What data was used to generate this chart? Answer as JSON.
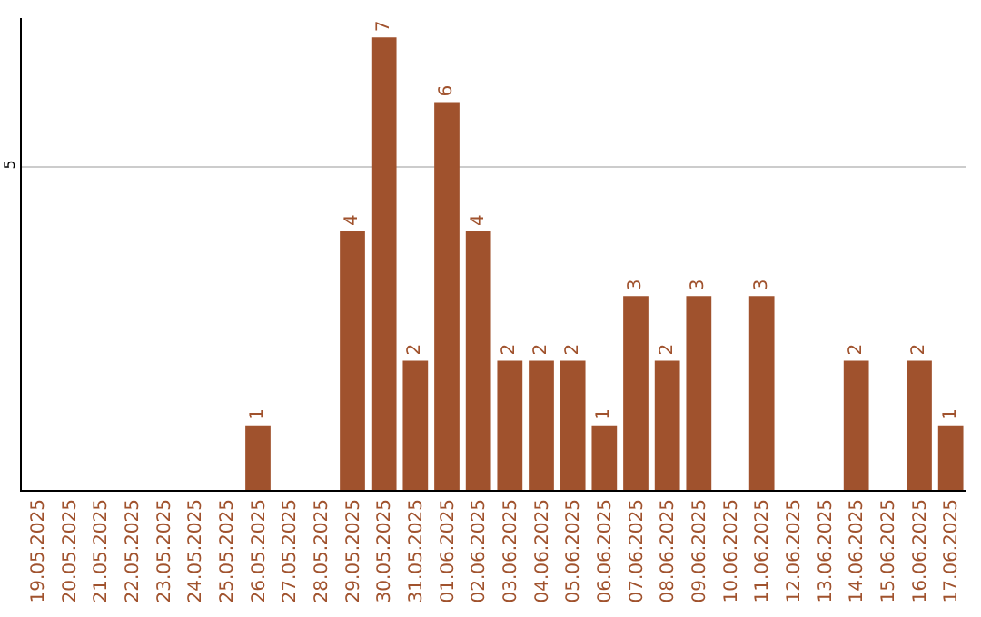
{
  "chart_data": {
    "type": "bar",
    "categories": [
      "19.05.2025",
      "20.05.2025",
      "21.05.2025",
      "22.05.2025",
      "23.05.2025",
      "24.05.2025",
      "25.05.2025",
      "26.05.2025",
      "27.05.2025",
      "28.05.2025",
      "29.05.2025",
      "30.05.2025",
      "31.05.2025",
      "01.06.2025",
      "02.06.2025",
      "03.06.2025",
      "04.06.2025",
      "05.06.2025",
      "06.06.2025",
      "07.06.2025",
      "08.06.2025",
      "09.06.2025",
      "10.06.2025",
      "11.06.2025",
      "12.06.2025",
      "13.06.2025",
      "14.06.2025",
      "15.06.2025",
      "16.06.2025",
      "17.06.2025"
    ],
    "values": [
      0,
      0,
      0,
      0,
      0,
      0,
      0,
      1,
      0,
      0,
      4,
      7,
      2,
      6,
      4,
      2,
      2,
      2,
      1,
      3,
      2,
      3,
      0,
      3,
      0,
      0,
      2,
      0,
      2,
      1
    ],
    "value_labels": [
      null,
      null,
      null,
      null,
      null,
      null,
      null,
      "1",
      null,
      null,
      "4",
      "7",
      "2",
      "6",
      "4",
      "2",
      "2",
      "2",
      "1",
      "3",
      "2",
      "3",
      null,
      "3",
      null,
      null,
      "2",
      null,
      "2",
      "1"
    ],
    "color": "#a0522d",
    "ylim": [
      0,
      7.3
    ],
    "yticks": [
      5
    ],
    "grid": "y",
    "legend": false
  }
}
